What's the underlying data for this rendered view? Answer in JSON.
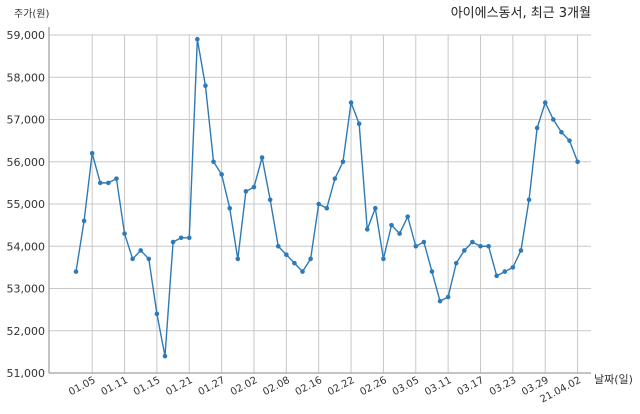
{
  "chart_data": {
    "type": "line",
    "title": "아이에스동서, 최근 3개월",
    "xlabel": "날짜(일)",
    "ylabel": "주가(원)",
    "grid": true,
    "ylim": [
      51000,
      59000
    ],
    "y_ticks": [
      "51,000",
      "52,000",
      "53,000",
      "54,000",
      "55,000",
      "56,000",
      "57,000",
      "58,000",
      "59,000"
    ],
    "x_tick_labels": [
      "01.05",
      "01.11",
      "01.15",
      "01.21",
      "01.27",
      "02.02",
      "02.08",
      "02.16",
      "02.22",
      "02.26",
      "03.05",
      "03.11",
      "03.17",
      "03.23",
      "03.29",
      "21.04.02"
    ],
    "line_color": "#2e7ab6",
    "grid_color": "#c8c8c8",
    "series": [
      {
        "values": [
          53400,
          54600,
          56200,
          55500,
          55500,
          55600,
          54300,
          53700,
          53900,
          53700,
          52400,
          51400,
          54100,
          54200,
          54200,
          58900,
          57800,
          56000,
          55700,
          54900,
          53700,
          55300,
          55400,
          56100,
          55100,
          54000,
          53800,
          53600,
          53400,
          53700,
          55000,
          54900,
          55600,
          56000,
          57400,
          56900,
          54400,
          54900,
          53700,
          54500,
          54300,
          54700,
          54000,
          54100,
          53400,
          52700,
          52800,
          53600,
          53900,
          54100,
          54000,
          54000,
          53300,
          53400,
          53500,
          53900,
          55100,
          56800,
          57400,
          57000,
          56700,
          56500,
          56000
        ]
      }
    ]
  }
}
